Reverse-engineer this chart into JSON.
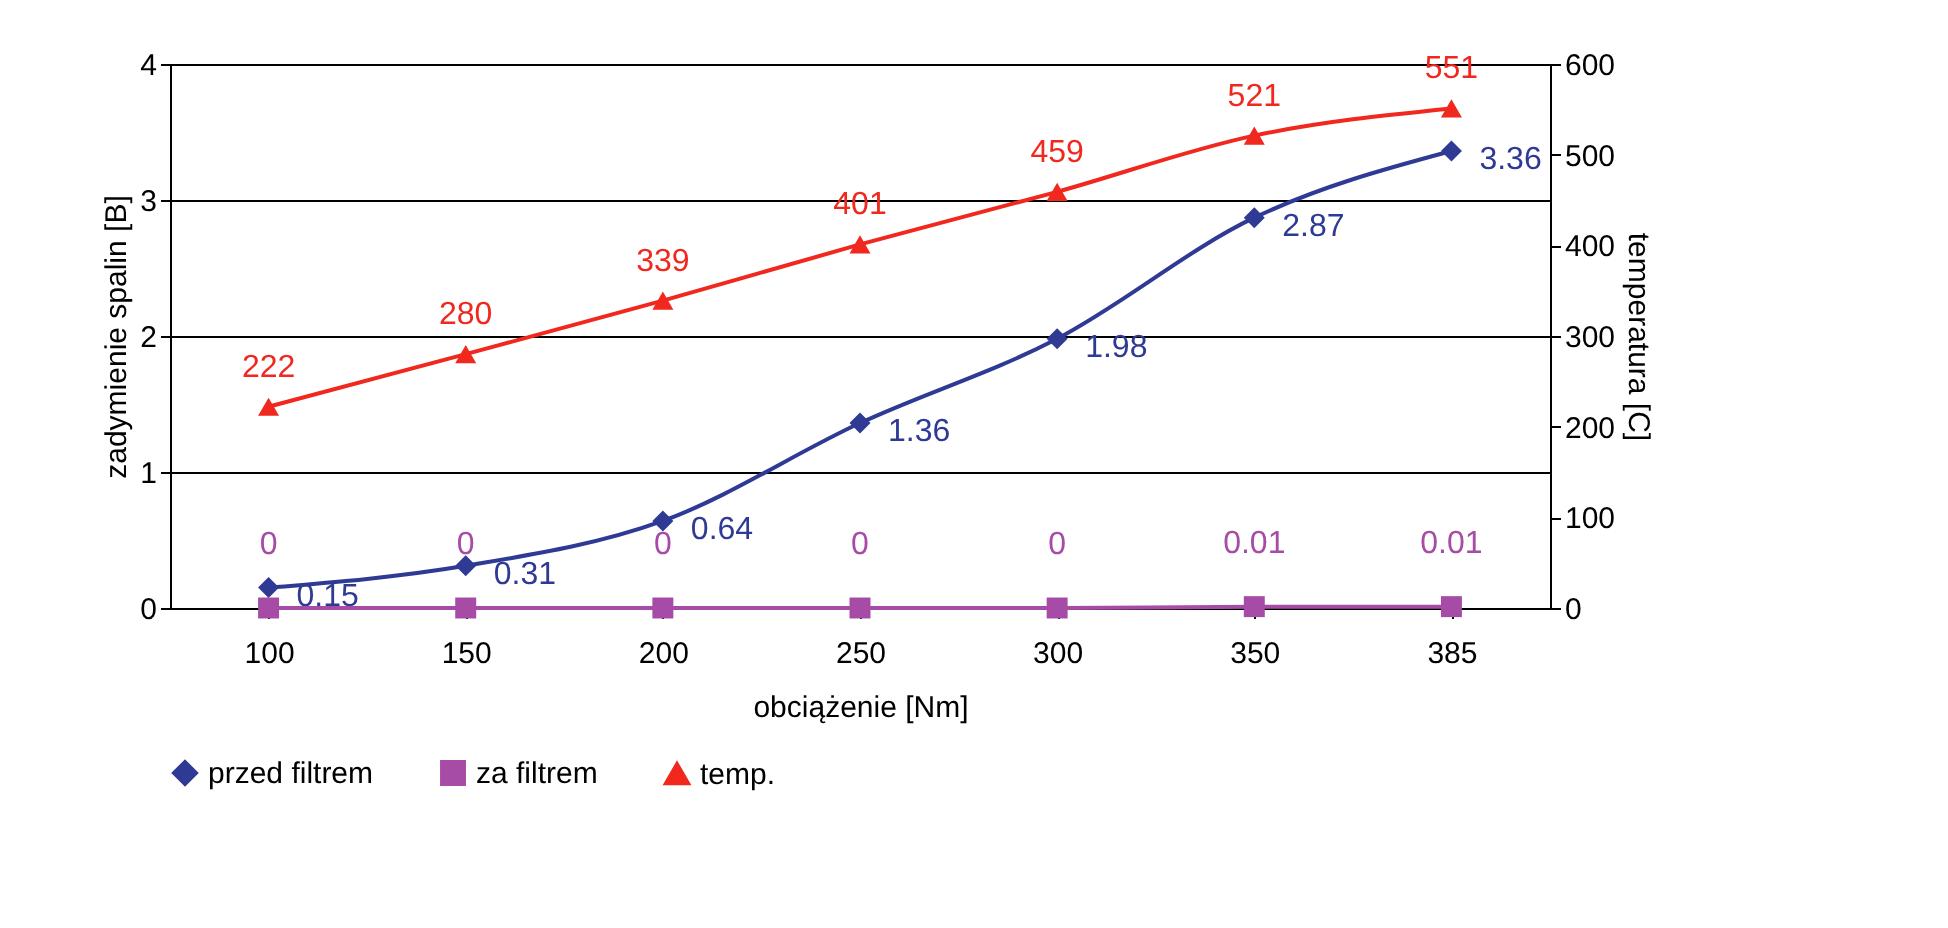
{
  "chart_data": {
    "type": "line",
    "categories": [
      "100",
      "150",
      "200",
      "250",
      "300",
      "350",
      "385"
    ],
    "series": [
      {
        "name": "przed filtrem",
        "color": "#2e3a94",
        "marker": "diamond",
        "values": [
          0.15,
          0.31,
          0.64,
          1.36,
          1.98,
          2.87,
          3.36
        ]
      },
      {
        "name": "za filtrem",
        "color": "#a64ca6",
        "marker": "square",
        "values": [
          0,
          0,
          0,
          0,
          0,
          0.01,
          0.01
        ]
      },
      {
        "name": "temp.",
        "color": "#f0281e",
        "marker": "triangle",
        "axis": "y2",
        "values": [
          222,
          280,
          339,
          401,
          459,
          521,
          551
        ]
      }
    ],
    "xlabel": "obciążenie [Nm]",
    "ylabel": "zadymienie spalin [B]",
    "y2label": "temperatura [C]",
    "ylim": [
      0,
      4
    ],
    "yticks": [
      0,
      1,
      2,
      3,
      4
    ],
    "y2lim": [
      0,
      600
    ],
    "y2ticks": [
      0,
      100,
      200,
      300,
      400,
      500,
      600
    ],
    "grid": "y",
    "legend": "bottom",
    "data_labels": true,
    "line_style": "solid"
  }
}
